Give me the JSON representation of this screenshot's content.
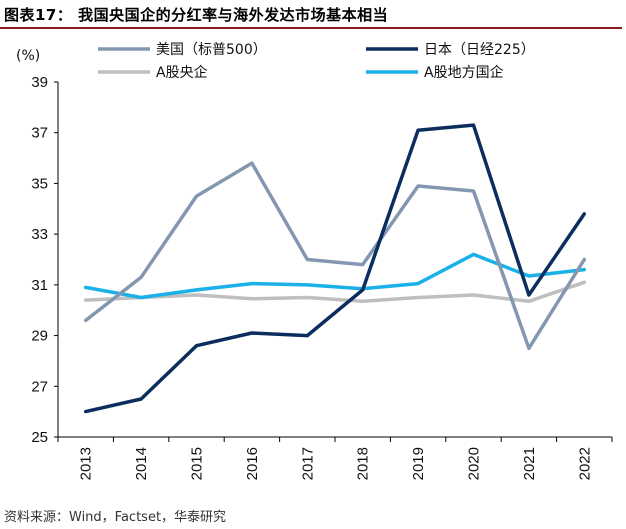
{
  "header": {
    "figure_title": "图表17：  我国央国企的分红率与海外发达市场基本相当"
  },
  "footer": {
    "source": "资料来源：Wind，Factset，华泰研究"
  },
  "chart_data": {
    "type": "line",
    "title": "",
    "xlabel": "",
    "ylabel": "",
    "y_unit": "(%)",
    "ylim": [
      25,
      39
    ],
    "yticks": [
      25,
      27,
      29,
      31,
      33,
      35,
      37,
      39
    ],
    "categories": [
      "2013",
      "2014",
      "2015",
      "2016",
      "2017",
      "2018",
      "2019",
      "2020",
      "2021",
      "2022"
    ],
    "grid": false,
    "legend_position": "top",
    "series": [
      {
        "name": "美国（标普500）",
        "color": "#8497b0",
        "values": [
          29.6,
          31.3,
          34.5,
          35.8,
          32.0,
          31.8,
          34.9,
          34.7,
          28.5,
          32.0
        ]
      },
      {
        "name": "日本（日经225）",
        "color": "#0b2e5e",
        "values": [
          26.0,
          26.5,
          28.6,
          29.1,
          29.0,
          30.8,
          37.1,
          37.3,
          30.6,
          33.8
        ]
      },
      {
        "name": "A股央企",
        "color": "#bfbfbf",
        "values": [
          30.4,
          30.5,
          30.6,
          30.45,
          30.5,
          30.35,
          30.5,
          30.6,
          30.35,
          31.1
        ]
      },
      {
        "name": "A股地方国企",
        "color": "#1ab0e8",
        "values": [
          30.9,
          30.5,
          30.8,
          31.05,
          31.0,
          30.85,
          31.05,
          32.2,
          31.35,
          31.6
        ]
      }
    ]
  }
}
